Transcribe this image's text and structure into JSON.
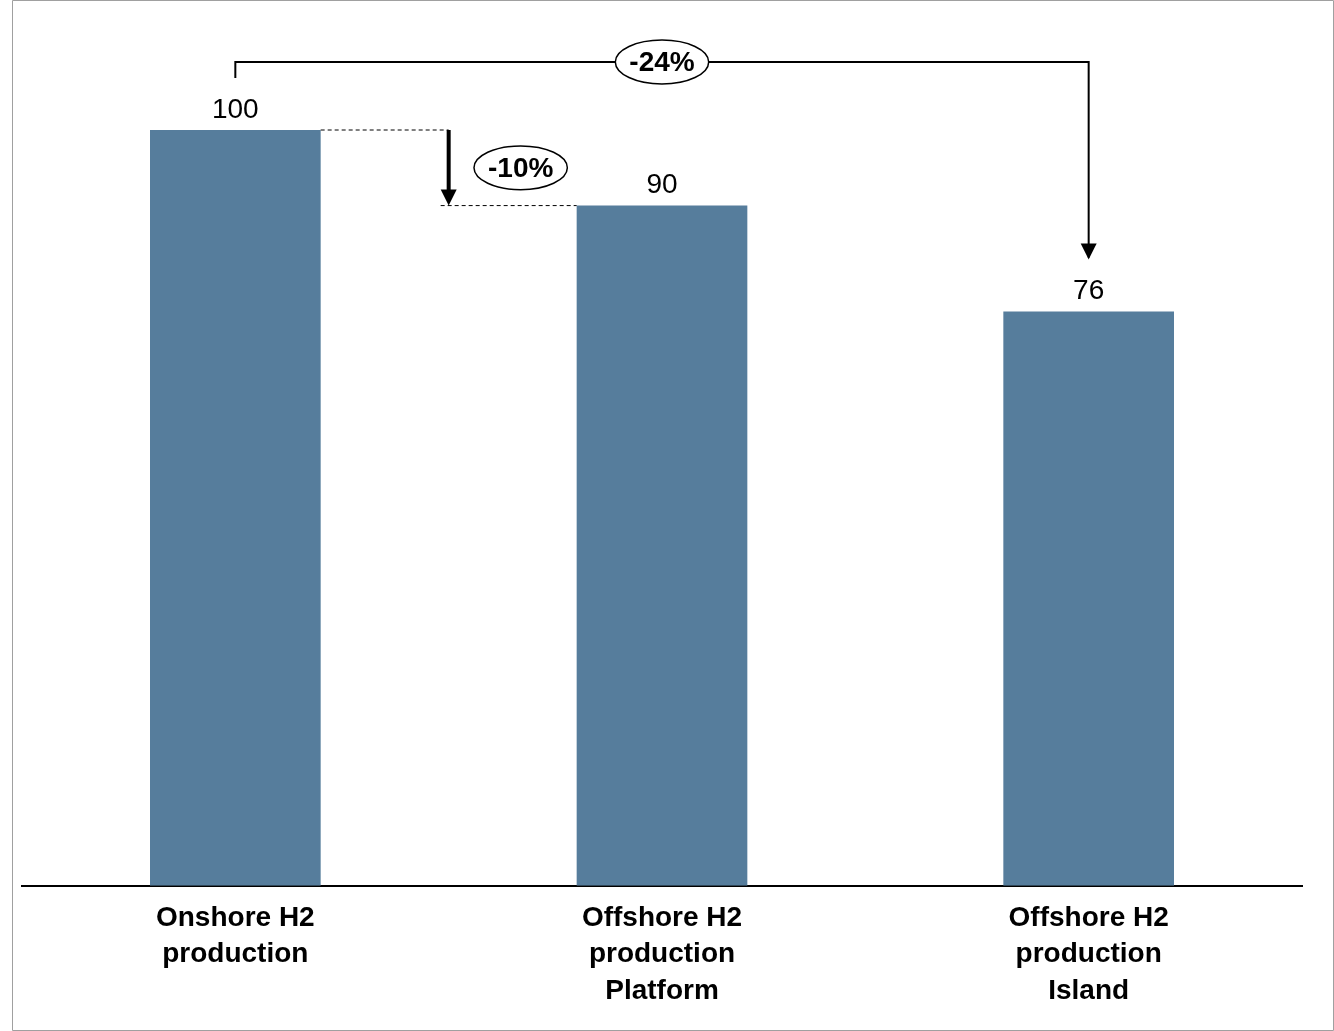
{
  "chart_data": {
    "type": "bar",
    "categories": [
      "Onshore H2 production",
      "Offshore H2 production Platform",
      "Offshore H2 production Island"
    ],
    "values": [
      100,
      90,
      76
    ],
    "color": "#567d9c",
    "data_labels": true,
    "grid": false,
    "legend": false,
    "annotations": [
      "-24%",
      "-10%"
    ]
  }
}
